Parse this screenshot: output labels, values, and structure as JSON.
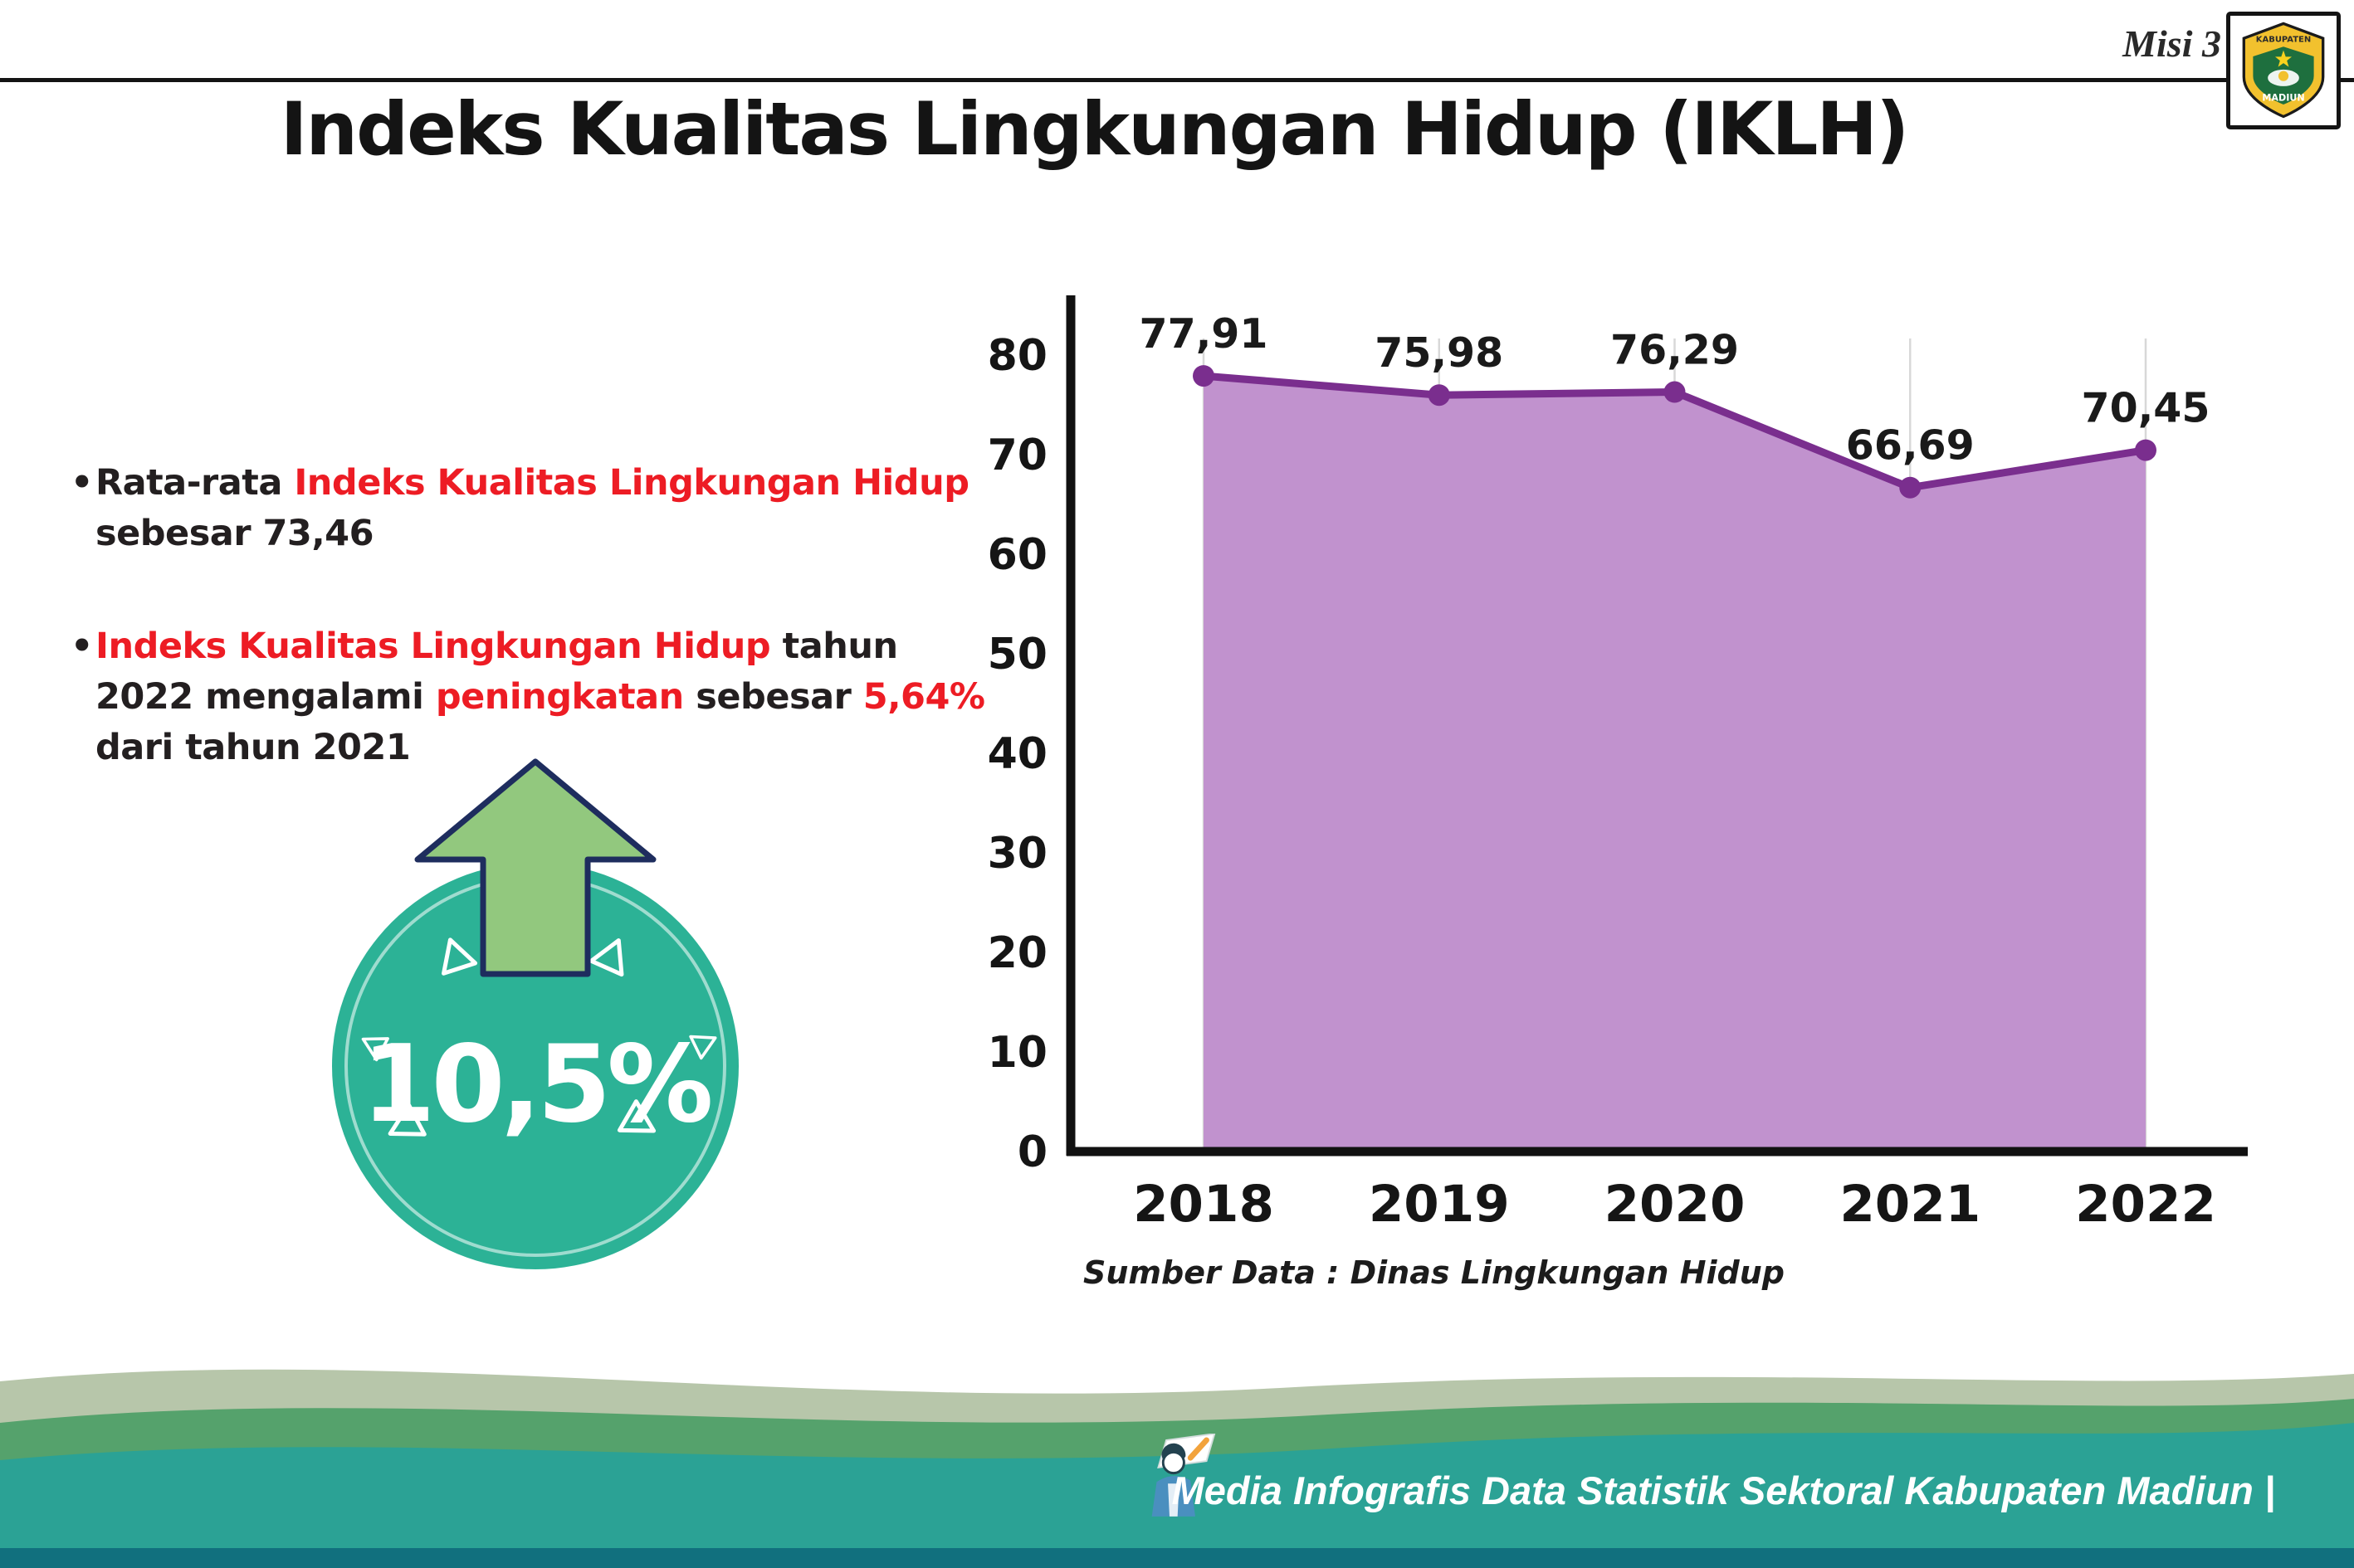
{
  "header": {
    "misi_label": "Misi 3",
    "title": "Indeks Kualitas Lingkungan Hidup (IKLH)",
    "logo": {
      "icon": "kabupaten-madiun-crest-icon",
      "text_top": "KABUPATEN",
      "text_bottom": "MADIUN"
    }
  },
  "bullets": [
    {
      "segments": [
        {
          "text": "Rata-rata ",
          "color": "dark"
        },
        {
          "text": "Indeks Kualitas Lingkungan Hidup",
          "color": "red"
        },
        {
          "text": " sebesar 73,46",
          "color": "dark"
        }
      ]
    },
    {
      "segments": [
        {
          "text": "Indeks Kualitas Lingkungan Hidup",
          "color": "red"
        },
        {
          "text": " tahun 2022 mengalami ",
          "color": "dark"
        },
        {
          "text": "peningkatan",
          "color": "red"
        },
        {
          "text": " sebesar ",
          "color": "dark"
        },
        {
          "text": "5,64%",
          "color": "red"
        },
        {
          "text": " dari tahun 2021",
          "color": "dark"
        }
      ]
    }
  ],
  "badge": {
    "value": "10,5%",
    "icon": "up-arrow-icon",
    "circle_color": "#2cb296",
    "arrow_color": "#92c87e",
    "arrow_outline": "#1e2d5e"
  },
  "chart_data": {
    "type": "area",
    "title": "",
    "categories": [
      "2018",
      "2019",
      "2020",
      "2021",
      "2022"
    ],
    "values": [
      77.91,
      75.98,
      76.29,
      66.69,
      70.45
    ],
    "value_labels": [
      "77,91",
      "75,98",
      "76,29",
      "66,69",
      "70,45"
    ],
    "xlabel": "",
    "ylabel": "",
    "ylim": [
      0,
      80
    ],
    "ytick_step": 10,
    "grid": "vertical",
    "legend": "none",
    "line_color": "#7a2e8e",
    "fill_color": "#c192ce",
    "source": "Sumber Data : Dinas Lingkungan Hidup"
  },
  "footer": {
    "caption": "Media Infografis Data Statistik Sektoral Kabupaten Madiun |",
    "mascot": "writer-mascot-icon"
  },
  "colors": {
    "accent_red": "#ed1c24",
    "badge_teal": "#2cb296",
    "footer_teal": "#2ba295",
    "footer_green": "#55a26c",
    "footer_sage": "#b7c6aa",
    "footer_dark": "#11707e"
  }
}
